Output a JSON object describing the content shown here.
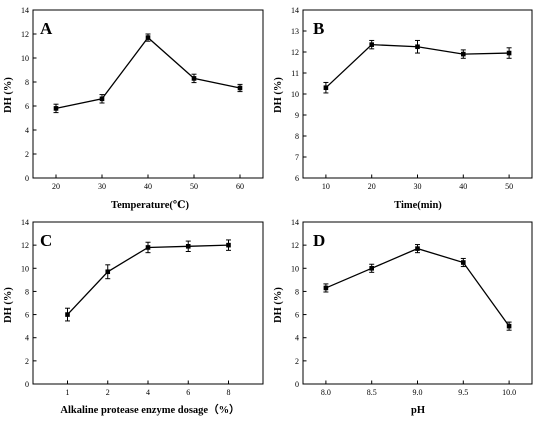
{
  "chart_data": [
    {
      "type": "line",
      "panel_label": "A",
      "xlabel": "Temperature(℃)",
      "ylabel": "DH (%)",
      "x": [
        20,
        30,
        40,
        50,
        60
      ],
      "x_tick_labels": [
        "20",
        "30",
        "40",
        "50",
        "60"
      ],
      "xlim": [
        15,
        65
      ],
      "ylim": [
        0,
        14
      ],
      "y_ticks": [
        "0",
        "2",
        "4",
        "6",
        "8",
        "10",
        "12",
        "14"
      ],
      "series": [
        {
          "values": [
            5.8,
            6.6,
            11.7,
            8.3,
            7.5
          ],
          "errors": [
            0.35,
            0.35,
            0.3,
            0.35,
            0.3
          ]
        }
      ],
      "grid": false,
      "legend": "none"
    },
    {
      "type": "line",
      "panel_label": "B",
      "xlabel": "Time(min)",
      "ylabel": "DH (%)",
      "x": [
        10,
        20,
        30,
        40,
        50
      ],
      "x_tick_labels": [
        "10",
        "20",
        "30",
        "40",
        "50"
      ],
      "xlim": [
        5,
        55
      ],
      "ylim": [
        6,
        14
      ],
      "y_ticks": [
        "6",
        "7",
        "8",
        "9",
        "10",
        "11",
        "12",
        "13",
        "14"
      ],
      "series": [
        {
          "values": [
            10.3,
            12.35,
            12.25,
            11.9,
            11.95
          ],
          "errors": [
            0.25,
            0.2,
            0.3,
            0.2,
            0.25
          ]
        }
      ],
      "grid": false,
      "legend": "none"
    },
    {
      "type": "line",
      "panel_label": "C",
      "xlabel": "Alkaline protease enzyme dosage（%）",
      "ylabel": "DH (%)",
      "x": [
        1,
        2,
        4,
        6,
        8
      ],
      "x_tick_labels": [
        "1",
        "2",
        "4",
        "6",
        "8"
      ],
      "categorical_x": true,
      "ylim": [
        0,
        14
      ],
      "y_ticks": [
        "0",
        "2",
        "4",
        "6",
        "8",
        "10",
        "12",
        "14"
      ],
      "series": [
        {
          "values": [
            6.0,
            9.7,
            11.8,
            11.9,
            12.0
          ],
          "errors": [
            0.55,
            0.6,
            0.45,
            0.45,
            0.45
          ]
        }
      ],
      "grid": false,
      "legend": "none"
    },
    {
      "type": "line",
      "panel_label": "D",
      "xlabel": "pH",
      "ylabel": "DH (%)",
      "x": [
        8.0,
        8.5,
        9.0,
        9.5,
        10.0
      ],
      "x_tick_labels": [
        "8.0",
        "8.5",
        "9.0",
        "9.5",
        "10.0"
      ],
      "xlim": [
        7.75,
        10.25
      ],
      "ylim": [
        0,
        14
      ],
      "y_ticks": [
        "0",
        "2",
        "4",
        "6",
        "8",
        "10",
        "12",
        "14"
      ],
      "series": [
        {
          "values": [
            8.3,
            10.0,
            11.7,
            10.5,
            5.0
          ],
          "errors": [
            0.35,
            0.35,
            0.35,
            0.35,
            0.35
          ]
        }
      ],
      "grid": false,
      "legend": "none"
    }
  ]
}
